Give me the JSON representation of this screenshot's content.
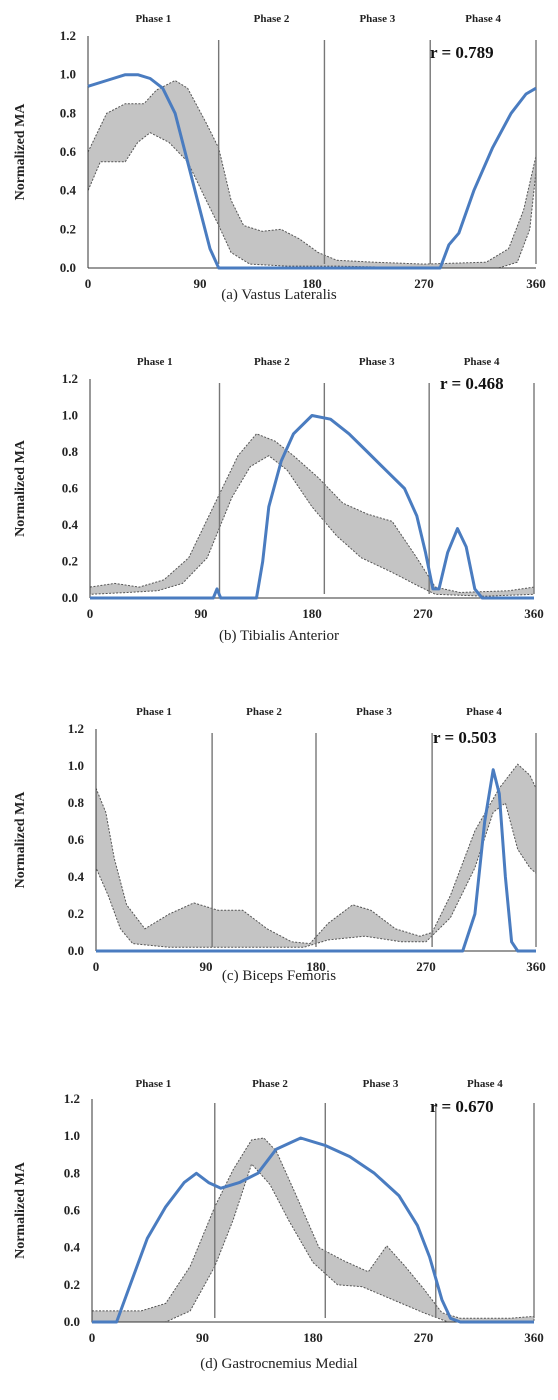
{
  "chart_data": [
    {
      "type": "line",
      "caption": "(a) Vastus Lateralis",
      "ylabel": "Normalized MA",
      "xlim": [
        0,
        360
      ],
      "ylim": [
        0,
        1.2
      ],
      "xticks": [
        0,
        90,
        180,
        270,
        360
      ],
      "yticks": [
        0.0,
        0.2,
        0.4,
        0.6,
        0.8,
        1.0,
        1.2
      ],
      "phase_labels": [
        "Phase 1",
        "Phase 2",
        "Phase 3",
        "Phase 4"
      ],
      "phase_boundaries": [
        105,
        190,
        275,
        360
      ],
      "r_label": "r = 0.789",
      "band_upper": [
        [
          0,
          0.6
        ],
        [
          15,
          0.8
        ],
        [
          30,
          0.85
        ],
        [
          45,
          0.85
        ],
        [
          55,
          0.92
        ],
        [
          70,
          0.97
        ],
        [
          80,
          0.93
        ],
        [
          95,
          0.75
        ],
        [
          105,
          0.62
        ],
        [
          115,
          0.35
        ],
        [
          125,
          0.22
        ],
        [
          140,
          0.19
        ],
        [
          155,
          0.2
        ],
        [
          170,
          0.15
        ],
        [
          185,
          0.08
        ],
        [
          200,
          0.04
        ],
        [
          230,
          0.03
        ],
        [
          270,
          0.02
        ],
        [
          320,
          0.03
        ],
        [
          338,
          0.1
        ],
        [
          350,
          0.3
        ],
        [
          360,
          0.58
        ]
      ],
      "band_lower": [
        [
          0,
          0.4
        ],
        [
          10,
          0.55
        ],
        [
          30,
          0.55
        ],
        [
          40,
          0.65
        ],
        [
          50,
          0.7
        ],
        [
          65,
          0.65
        ],
        [
          80,
          0.55
        ],
        [
          95,
          0.35
        ],
        [
          105,
          0.22
        ],
        [
          115,
          0.08
        ],
        [
          130,
          0.02
        ],
        [
          160,
          0.01
        ],
        [
          200,
          0.01
        ],
        [
          270,
          0.0
        ],
        [
          330,
          0.0
        ],
        [
          345,
          0.03
        ],
        [
          355,
          0.2
        ],
        [
          360,
          0.5
        ]
      ],
      "line": [
        [
          0,
          0.94
        ],
        [
          15,
          0.97
        ],
        [
          30,
          1.0
        ],
        [
          40,
          1.0
        ],
        [
          50,
          0.98
        ],
        [
          60,
          0.93
        ],
        [
          70,
          0.8
        ],
        [
          80,
          0.55
        ],
        [
          90,
          0.3
        ],
        [
          98,
          0.1
        ],
        [
          105,
          0.0
        ],
        [
          283,
          0.0
        ],
        [
          290,
          0.12
        ],
        [
          298,
          0.18
        ],
        [
          310,
          0.4
        ],
        [
          325,
          0.62
        ],
        [
          340,
          0.8
        ],
        [
          352,
          0.9
        ],
        [
          360,
          0.93
        ]
      ]
    },
    {
      "type": "line",
      "caption": "(b) Tibialis Anterior",
      "ylabel": "Normalized MA",
      "xlim": [
        0,
        360
      ],
      "ylim": [
        0,
        1.2
      ],
      "xticks": [
        0,
        90,
        180,
        270,
        360
      ],
      "yticks": [
        0.0,
        0.2,
        0.4,
        0.6,
        0.8,
        1.0,
        1.2
      ],
      "phase_labels": [
        "Phase 1",
        "Phase 2",
        "Phase 3",
        "Phase 4"
      ],
      "phase_boundaries": [
        105,
        190,
        275,
        360
      ],
      "r_label": "r = 0.468",
      "band_upper": [
        [
          0,
          0.06
        ],
        [
          20,
          0.08
        ],
        [
          40,
          0.06
        ],
        [
          60,
          0.1
        ],
        [
          80,
          0.22
        ],
        [
          100,
          0.5
        ],
        [
          120,
          0.78
        ],
        [
          135,
          0.9
        ],
        [
          150,
          0.86
        ],
        [
          165,
          0.78
        ],
        [
          185,
          0.66
        ],
        [
          205,
          0.52
        ],
        [
          225,
          0.46
        ],
        [
          245,
          0.42
        ],
        [
          265,
          0.22
        ],
        [
          280,
          0.06
        ],
        [
          300,
          0.03
        ],
        [
          340,
          0.04
        ],
        [
          360,
          0.06
        ]
      ],
      "band_lower": [
        [
          0,
          0.02
        ],
        [
          30,
          0.03
        ],
        [
          55,
          0.04
        ],
        [
          75,
          0.08
        ],
        [
          95,
          0.22
        ],
        [
          115,
          0.55
        ],
        [
          130,
          0.72
        ],
        [
          145,
          0.78
        ],
        [
          160,
          0.7
        ],
        [
          180,
          0.5
        ],
        [
          200,
          0.34
        ],
        [
          220,
          0.22
        ],
        [
          245,
          0.14
        ],
        [
          265,
          0.07
        ],
        [
          280,
          0.02
        ],
        [
          320,
          0.01
        ],
        [
          360,
          0.02
        ]
      ],
      "line": [
        [
          0,
          0.0
        ],
        [
          100,
          0.0
        ],
        [
          103,
          0.05
        ],
        [
          106,
          0.0
        ],
        [
          135,
          0.0
        ],
        [
          140,
          0.2
        ],
        [
          145,
          0.5
        ],
        [
          155,
          0.75
        ],
        [
          165,
          0.9
        ],
        [
          180,
          1.0
        ],
        [
          195,
          0.98
        ],
        [
          210,
          0.9
        ],
        [
          225,
          0.8
        ],
        [
          240,
          0.7
        ],
        [
          255,
          0.6
        ],
        [
          265,
          0.45
        ],
        [
          272,
          0.25
        ],
        [
          278,
          0.05
        ],
        [
          283,
          0.05
        ],
        [
          290,
          0.25
        ],
        [
          298,
          0.38
        ],
        [
          305,
          0.28
        ],
        [
          312,
          0.05
        ],
        [
          318,
          0.0
        ],
        [
          360,
          0.0
        ]
      ]
    },
    {
      "type": "line",
      "caption": "(c) Biceps Femoris",
      "ylabel": "Normalized MA",
      "xlim": [
        0,
        360
      ],
      "ylim": [
        0,
        1.2
      ],
      "xticks": [
        0,
        90,
        180,
        270,
        360
      ],
      "yticks": [
        0.0,
        0.2,
        0.4,
        0.6,
        0.8,
        1.0,
        1.2
      ],
      "phase_labels": [
        "Phase 1",
        "Phase 2",
        "Phase 3",
        "Phase 4"
      ],
      "phase_boundaries": [
        95,
        180,
        275,
        360
      ],
      "r_label": "r = 0.503",
      "band_upper": [
        [
          0,
          0.88
        ],
        [
          8,
          0.75
        ],
        [
          15,
          0.5
        ],
        [
          25,
          0.25
        ],
        [
          40,
          0.12
        ],
        [
          60,
          0.2
        ],
        [
          80,
          0.26
        ],
        [
          100,
          0.22
        ],
        [
          120,
          0.22
        ],
        [
          140,
          0.12
        ],
        [
          160,
          0.05
        ],
        [
          175,
          0.04
        ],
        [
          190,
          0.15
        ],
        [
          210,
          0.25
        ],
        [
          225,
          0.22
        ],
        [
          245,
          0.12
        ],
        [
          265,
          0.08
        ],
        [
          275,
          0.1
        ],
        [
          290,
          0.3
        ],
        [
          310,
          0.65
        ],
        [
          330,
          0.88
        ],
        [
          345,
          1.01
        ],
        [
          355,
          0.95
        ],
        [
          360,
          0.88
        ]
      ],
      "band_lower": [
        [
          0,
          0.45
        ],
        [
          10,
          0.3
        ],
        [
          20,
          0.12
        ],
        [
          30,
          0.04
        ],
        [
          60,
          0.02
        ],
        [
          100,
          0.02
        ],
        [
          130,
          0.02
        ],
        [
          170,
          0.02
        ],
        [
          190,
          0.06
        ],
        [
          220,
          0.08
        ],
        [
          250,
          0.05
        ],
        [
          270,
          0.05
        ],
        [
          290,
          0.18
        ],
        [
          310,
          0.45
        ],
        [
          325,
          0.75
        ],
        [
          335,
          0.8
        ],
        [
          345,
          0.55
        ],
        [
          355,
          0.45
        ],
        [
          360,
          0.42
        ]
      ],
      "line": [
        [
          0,
          0.0
        ],
        [
          300,
          0.0
        ],
        [
          310,
          0.2
        ],
        [
          318,
          0.7
        ],
        [
          325,
          0.98
        ],
        [
          330,
          0.85
        ],
        [
          335,
          0.4
        ],
        [
          340,
          0.05
        ],
        [
          345,
          0.0
        ],
        [
          360,
          0.0
        ]
      ]
    },
    {
      "type": "line",
      "caption": "(d) Gastrocnemius Medial",
      "ylabel": "Normalized MA",
      "xlim": [
        0,
        360
      ],
      "ylim": [
        0,
        1.2
      ],
      "xticks": [
        0,
        90,
        180,
        270,
        360
      ],
      "yticks": [
        0.0,
        0.2,
        0.4,
        0.6,
        0.8,
        1.0,
        1.2
      ],
      "phase_labels": [
        "Phase 1",
        "Phase 2",
        "Phase 3",
        "Phase 4"
      ],
      "phase_boundaries": [
        100,
        190,
        280,
        360
      ],
      "r_label": "r = 0.670",
      "band_upper": [
        [
          0,
          0.06
        ],
        [
          40,
          0.06
        ],
        [
          60,
          0.1
        ],
        [
          80,
          0.3
        ],
        [
          100,
          0.62
        ],
        [
          115,
          0.82
        ],
        [
          130,
          0.98
        ],
        [
          140,
          0.99
        ],
        [
          150,
          0.92
        ],
        [
          165,
          0.7
        ],
        [
          185,
          0.4
        ],
        [
          205,
          0.33
        ],
        [
          225,
          0.27
        ],
        [
          240,
          0.41
        ],
        [
          255,
          0.3
        ],
        [
          270,
          0.18
        ],
        [
          285,
          0.05
        ],
        [
          300,
          0.02
        ],
        [
          340,
          0.02
        ],
        [
          360,
          0.03
        ]
      ],
      "band_lower": [
        [
          0,
          0.0
        ],
        [
          60,
          0.0
        ],
        [
          80,
          0.06
        ],
        [
          100,
          0.3
        ],
        [
          115,
          0.55
        ],
        [
          130,
          0.85
        ],
        [
          145,
          0.74
        ],
        [
          160,
          0.55
        ],
        [
          180,
          0.32
        ],
        [
          200,
          0.2
        ],
        [
          220,
          0.19
        ],
        [
          245,
          0.12
        ],
        [
          270,
          0.05
        ],
        [
          290,
          0.0
        ],
        [
          360,
          0.0
        ]
      ],
      "line": [
        [
          0,
          0.0
        ],
        [
          20,
          0.0
        ],
        [
          30,
          0.18
        ],
        [
          45,
          0.45
        ],
        [
          60,
          0.62
        ],
        [
          75,
          0.75
        ],
        [
          85,
          0.8
        ],
        [
          95,
          0.75
        ],
        [
          105,
          0.72
        ],
        [
          120,
          0.75
        ],
        [
          135,
          0.8
        ],
        [
          150,
          0.93
        ],
        [
          170,
          0.99
        ],
        [
          190,
          0.95
        ],
        [
          210,
          0.89
        ],
        [
          230,
          0.8
        ],
        [
          250,
          0.68
        ],
        [
          265,
          0.52
        ],
        [
          275,
          0.35
        ],
        [
          285,
          0.12
        ],
        [
          292,
          0.02
        ],
        [
          300,
          0.0
        ],
        [
          360,
          0.0
        ]
      ]
    }
  ]
}
